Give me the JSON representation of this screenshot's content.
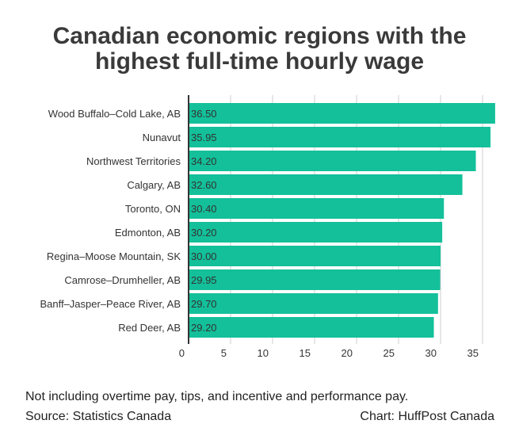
{
  "title_lines": [
    "Canadian economic regions with the",
    "highest full-time hourly wage"
  ],
  "note": "Not including overtime pay, tips, and incentive and performance pay.",
  "source": "Source: Statistics Canada",
  "credit": "Chart: HuffPost Canada",
  "colors": {
    "bar": "#13c09a",
    "grid": "#cccccc",
    "axis": "#333333",
    "text": "#333333"
  },
  "chart_data": {
    "type": "bar",
    "orientation": "horizontal",
    "title": "Canadian economic regions with the highest full-time hourly wage",
    "categories": [
      "Wood Buffalo–Cold Lake, AB",
      "Nunavut",
      "Northwest Territories",
      "Calgary, AB",
      "Toronto, ON",
      "Edmonton, AB",
      "Regina–Moose Mountain, SK",
      "Camrose–Drumheller, AB",
      "Banff–Jasper–Peace River, AB",
      "Red Deer, AB"
    ],
    "values": [
      36.5,
      35.95,
      34.2,
      32.6,
      30.4,
      30.2,
      30.0,
      29.95,
      29.7,
      29.2
    ],
    "value_labels": [
      "36.50",
      "35.95",
      "34.20",
      "32.60",
      "30.40",
      "30.20",
      "30.00",
      "29.95",
      "29.70",
      "29.20"
    ],
    "x_ticks": [
      0,
      5,
      10,
      15,
      20,
      25,
      30,
      35
    ],
    "xlim": [
      0,
      36.5
    ],
    "grid": true,
    "legend": "none"
  }
}
